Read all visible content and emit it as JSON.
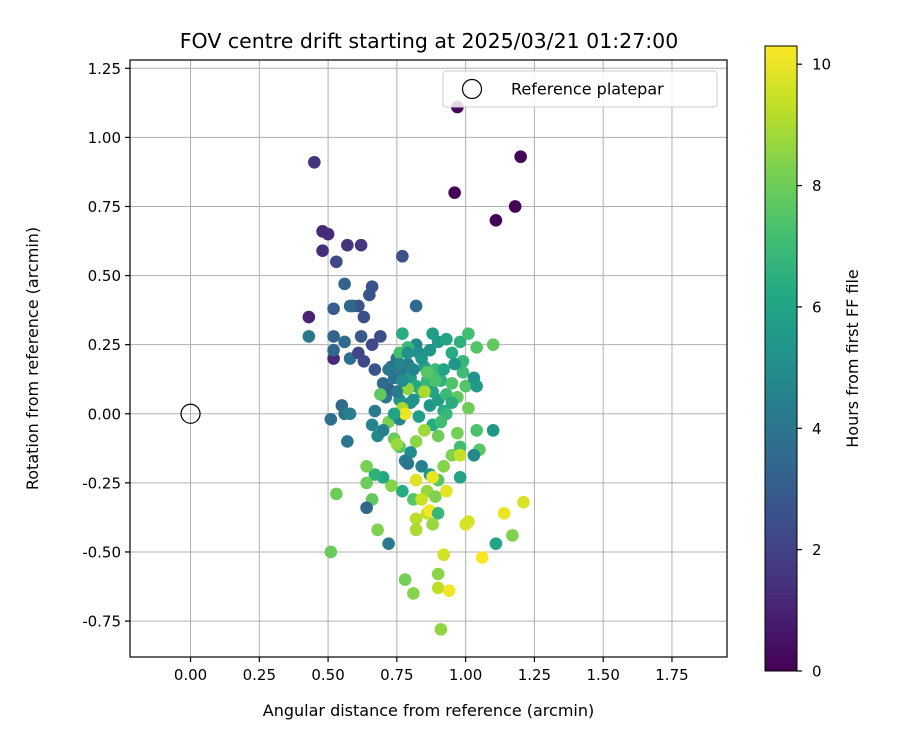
{
  "chart_data": {
    "type": "scatter",
    "title": "FOV centre drift starting at 2025/03/21 01:27:00",
    "xlabel": "Angular distance from reference (arcmin)",
    "ylabel": "Rotation from reference (arcmin)",
    "xlim": [
      -0.22,
      1.95
    ],
    "ylim": [
      -0.88,
      1.28
    ],
    "xticks": [
      "0.00",
      "0.25",
      "0.50",
      "0.75",
      "1.00",
      "1.25",
      "1.50",
      "1.75"
    ],
    "yticks": [
      "-0.75",
      "-0.50",
      "-0.25",
      "0.00",
      "0.25",
      "0.50",
      "0.75",
      "1.00",
      "1.25"
    ],
    "grid": true,
    "legend_position": "top-right",
    "legend": [
      "Reference platepar"
    ],
    "reference_point": {
      "x": 0.0,
      "y": 0.0,
      "name": "Reference platepar"
    },
    "colorbar": {
      "label": "Hours from first FF file",
      "range": [
        0,
        10.3
      ],
      "ticks": [
        "0",
        "2",
        "4",
        "6",
        "8",
        "10"
      ],
      "colormap": "viridis"
    },
    "points": [
      [
        0.97,
        1.11,
        0.1
      ],
      [
        1.2,
        0.93,
        0.1
      ],
      [
        0.96,
        0.8,
        0.1
      ],
      [
        1.18,
        0.75,
        0.1
      ],
      [
        1.11,
        0.7,
        0.1
      ],
      [
        0.45,
        0.91,
        1.5
      ],
      [
        0.48,
        0.66,
        1.2
      ],
      [
        0.5,
        0.65,
        1.3
      ],
      [
        0.48,
        0.59,
        1.4
      ],
      [
        0.57,
        0.61,
        1.5
      ],
      [
        0.62,
        0.61,
        1.6
      ],
      [
        0.53,
        0.55,
        2.3
      ],
      [
        0.43,
        0.35,
        1.0
      ],
      [
        0.52,
        0.2,
        1.2
      ],
      [
        0.77,
        0.57,
        2.5
      ],
      [
        0.66,
        0.46,
        2.6
      ],
      [
        0.65,
        0.43,
        2.7
      ],
      [
        0.59,
        0.39,
        2.8
      ],
      [
        0.61,
        0.39,
        2.6
      ],
      [
        0.63,
        0.35,
        2.5
      ],
      [
        0.52,
        0.38,
        3.0
      ],
      [
        0.56,
        0.47,
        3.2
      ],
      [
        0.58,
        0.39,
        3.5
      ],
      [
        0.62,
        0.28,
        2.9
      ],
      [
        0.69,
        0.28,
        2.4
      ],
      [
        0.66,
        0.25,
        2.2
      ],
      [
        0.52,
        0.28,
        3.3
      ],
      [
        0.52,
        0.23,
        3.4
      ],
      [
        0.56,
        0.26,
        3.6
      ],
      [
        0.58,
        0.2,
        3.8
      ],
      [
        0.61,
        0.22,
        2.1
      ],
      [
        0.63,
        0.19,
        2.3
      ],
      [
        0.67,
        0.16,
        2.7
      ],
      [
        0.43,
        0.28,
        4.1
      ],
      [
        0.55,
        0.03,
        3.6
      ],
      [
        0.56,
        0.0,
        3.9
      ],
      [
        0.58,
        0.0,
        4.4
      ],
      [
        0.51,
        -0.02,
        3.8
      ],
      [
        0.57,
        -0.1,
        4.0
      ],
      [
        0.67,
        0.01,
        4.3
      ],
      [
        0.66,
        -0.04,
        4.6
      ],
      [
        0.68,
        -0.08,
        4.9
      ],
      [
        0.71,
        0.06,
        4.0
      ],
      [
        0.72,
        0.09,
        3.2
      ],
      [
        0.7,
        0.11,
        3.6
      ],
      [
        0.73,
        0.17,
        3.5
      ],
      [
        0.75,
        0.2,
        3.9
      ],
      [
        0.77,
        0.15,
        4.2
      ],
      [
        0.79,
        0.18,
        4.5
      ],
      [
        0.82,
        0.39,
        3.6
      ],
      [
        0.82,
        0.25,
        4.8
      ],
      [
        0.83,
        0.22,
        5.0
      ],
      [
        0.87,
        0.23,
        5.3
      ],
      [
        0.9,
        0.26,
        5.5
      ],
      [
        0.88,
        0.29,
        5.7
      ],
      [
        0.93,
        0.27,
        6.0
      ],
      [
        0.95,
        0.22,
        6.3
      ],
      [
        0.98,
        0.26,
        6.5
      ],
      [
        0.99,
        0.19,
        6.8
      ],
      [
        1.01,
        0.29,
        7.2
      ],
      [
        1.04,
        0.24,
        7.5
      ],
      [
        1.1,
        0.25,
        7.8
      ],
      [
        0.77,
        0.29,
        6.4
      ],
      [
        0.79,
        0.24,
        6.9
      ],
      [
        0.76,
        0.22,
        7.2
      ],
      [
        0.8,
        0.13,
        5.8
      ],
      [
        0.78,
        0.1,
        5.6
      ],
      [
        0.76,
        0.05,
        5.2
      ],
      [
        0.8,
        0.04,
        5.0
      ],
      [
        0.82,
        0.1,
        6.2
      ],
      [
        0.84,
        0.08,
        6.6
      ],
      [
        0.86,
        0.12,
        6.8
      ],
      [
        0.89,
        0.16,
        7.0
      ],
      [
        0.91,
        0.12,
        6.6
      ],
      [
        0.88,
        0.08,
        6.0
      ],
      [
        0.87,
        0.03,
        5.4
      ],
      [
        0.9,
        0.05,
        5.8
      ],
      [
        0.92,
        0.01,
        6.3
      ],
      [
        0.93,
        0.07,
        6.9
      ],
      [
        0.95,
        0.11,
        7.4
      ],
      [
        0.97,
        0.06,
        7.7
      ],
      [
        1.0,
        0.1,
        7.5
      ],
      [
        1.03,
        0.13,
        5.2
      ],
      [
        1.04,
        0.1,
        5.6
      ],
      [
        0.99,
        0.15,
        7.0
      ],
      [
        1.01,
        0.02,
        8.0
      ],
      [
        0.97,
        -0.07,
        8.1
      ],
      [
        1.04,
        -0.06,
        7.3
      ],
      [
        1.1,
        -0.06,
        5.4
      ],
      [
        1.05,
        -0.13,
        7.6
      ],
      [
        1.03,
        -0.15,
        4.8
      ],
      [
        0.98,
        -0.12,
        7.1
      ],
      [
        0.98,
        -0.23,
        6.0
      ],
      [
        0.95,
        -0.15,
        8.3
      ],
      [
        0.9,
        -0.08,
        8.0
      ],
      [
        0.88,
        -0.04,
        6.3
      ],
      [
        0.85,
        -0.06,
        8.8
      ],
      [
        0.82,
        -0.1,
        8.5
      ],
      [
        0.8,
        -0.14,
        5.0
      ],
      [
        0.78,
        -0.17,
        4.2
      ],
      [
        0.76,
        -0.12,
        7.6
      ],
      [
        0.74,
        -0.09,
        7.9
      ],
      [
        0.72,
        -0.03,
        8.2
      ],
      [
        0.76,
        -0.02,
        4.6
      ],
      [
        0.79,
        -0.18,
        4.0
      ],
      [
        0.84,
        -0.19,
        4.4
      ],
      [
        0.87,
        -0.22,
        5.6
      ],
      [
        0.86,
        -0.28,
        8.7
      ],
      [
        0.89,
        -0.3,
        8.3
      ],
      [
        0.92,
        -0.19,
        8.4
      ],
      [
        0.9,
        -0.24,
        7.6
      ],
      [
        0.81,
        -0.31,
        7.5
      ],
      [
        0.77,
        -0.28,
        6.3
      ],
      [
        0.73,
        -0.26,
        8.4
      ],
      [
        0.7,
        -0.23,
        6.2
      ],
      [
        0.67,
        -0.22,
        6.6
      ],
      [
        0.64,
        -0.19,
        8.2
      ],
      [
        0.64,
        -0.25,
        8.0
      ],
      [
        0.66,
        -0.31,
        7.8
      ],
      [
        0.64,
        -0.34,
        3.4
      ],
      [
        0.78,
        -0.6,
        8.1
      ],
      [
        0.72,
        -0.47,
        4.2
      ],
      [
        0.51,
        -0.5,
        7.9
      ],
      [
        0.53,
        -0.29,
        8.0
      ],
      [
        0.68,
        -0.42,
        8.3
      ],
      [
        0.82,
        -0.24,
        9.8
      ],
      [
        0.84,
        -0.31,
        9.5
      ],
      [
        0.82,
        -0.38,
        9.2
      ],
      [
        0.82,
        -0.42,
        9.0
      ],
      [
        0.86,
        -0.36,
        9.4
      ],
      [
        0.87,
        -0.35,
        10.2
      ],
      [
        0.88,
        -0.23,
        10.0
      ],
      [
        0.93,
        -0.28,
        9.9
      ],
      [
        0.9,
        -0.36,
        6.8
      ],
      [
        0.88,
        -0.4,
        8.7
      ],
      [
        0.92,
        -0.51,
        9.6
      ],
      [
        0.9,
        -0.58,
        8.5
      ],
      [
        0.9,
        -0.63,
        9.3
      ],
      [
        0.94,
        -0.64,
        10.1
      ],
      [
        0.91,
        -0.78,
        8.6
      ],
      [
        0.81,
        -0.65,
        8.4
      ],
      [
        1.0,
        -0.4,
        9.8
      ],
      [
        1.01,
        -0.39,
        9.6
      ],
      [
        1.06,
        -0.52,
        10.2
      ],
      [
        1.11,
        -0.47,
        6.0
      ],
      [
        1.14,
        -0.36,
        10.0
      ],
      [
        1.17,
        -0.44,
        8.3
      ],
      [
        1.21,
        -0.32,
        9.7
      ],
      [
        0.98,
        -0.15,
        9.4
      ],
      [
        0.77,
        0.02,
        8.9
      ],
      [
        0.78,
        0.0,
        10.0
      ],
      [
        0.85,
        0.08,
        9.0
      ],
      [
        0.79,
        0.09,
        8.6
      ],
      [
        0.75,
        -0.11,
        8.7
      ],
      [
        0.74,
        0.0,
        5.9
      ],
      [
        0.89,
        0.12,
        7.3
      ],
      [
        0.92,
        0.16,
        6.1
      ],
      [
        0.85,
        0.17,
        5.9
      ],
      [
        0.86,
        0.15,
        7.6
      ],
      [
        0.95,
        0.04,
        6.4
      ],
      [
        0.93,
        0.0,
        6.8
      ],
      [
        0.91,
        -0.03,
        7.1
      ],
      [
        0.96,
        0.18,
        5.4
      ],
      [
        0.84,
        0.2,
        5.5
      ],
      [
        0.81,
        0.16,
        4.7
      ],
      [
        0.74,
        0.13,
        3.9
      ],
      [
        0.75,
        0.08,
        4.3
      ],
      [
        0.77,
        0.12,
        5.0
      ],
      [
        0.81,
        0.05,
        5.3
      ],
      [
        0.83,
        -0.01,
        5.7
      ],
      [
        0.72,
        0.16,
        4.1
      ],
      [
        0.76,
        0.18,
        4.6
      ],
      [
        0.79,
        0.22,
        5.2
      ],
      [
        0.69,
        0.07,
        7.7
      ],
      [
        0.7,
        -0.06,
        4.5
      ]
    ]
  }
}
